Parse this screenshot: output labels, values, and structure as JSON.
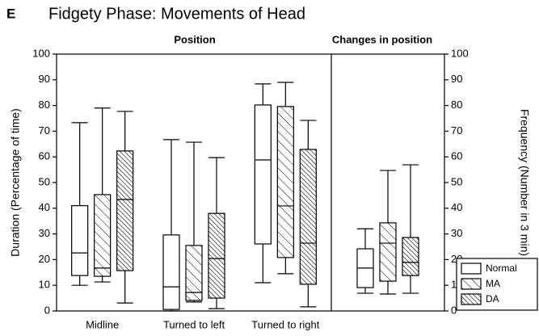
{
  "chart_data": [
    {
      "type": "box",
      "panel_label": "E",
      "title": "Fidgety Phase: Movements of Head",
      "subtitle": "Position",
      "ylabel": "Duration (Percentage of time)",
      "categories": [
        "Midline",
        "Turned to left",
        "Turned to right"
      ],
      "ylim": [
        0,
        100
      ],
      "yticks": [
        0,
        10,
        20,
        30,
        40,
        50,
        60,
        70,
        80,
        90,
        100
      ],
      "series": [
        {
          "name": "Normal",
          "hatch": "none",
          "min": [
            10,
            0,
            11
          ],
          "q1": [
            13.8,
            0.6,
            26.1
          ],
          "median": [
            22.6,
            9.4,
            58.8
          ],
          "q3": [
            41,
            29.6,
            80.2
          ],
          "max": [
            73.3,
            66.7,
            88.4
          ]
        },
        {
          "name": "MA",
          "hatch": "sparse",
          "min": [
            11.3,
            3.5,
            14.5
          ],
          "q1": [
            13.5,
            4.1,
            20.8
          ],
          "median": [
            16.7,
            7.2,
            40.9
          ],
          "q3": [
            45.3,
            25.5,
            79.6
          ],
          "max": [
            79,
            65.7,
            89
          ]
        },
        {
          "name": "DA",
          "hatch": "dense",
          "min": [
            3.1,
            0.9,
            1.6
          ],
          "q1": [
            15.7,
            5,
            10.4
          ],
          "median": [
            43.4,
            20.4,
            26.4
          ],
          "q3": [
            62.3,
            38,
            62.9
          ],
          "max": [
            77.7,
            59.7,
            74.2
          ]
        }
      ]
    },
    {
      "type": "box",
      "subtitle": "Changes in position",
      "y2label": "Frequency (Number in 3 min)",
      "categories": [
        null
      ],
      "y2lim": [
        0,
        100
      ],
      "y2ticks": [
        0,
        10,
        20,
        30,
        40,
        50,
        60,
        70,
        80,
        90,
        100
      ],
      "legend": "lower right",
      "series": [
        {
          "name": "Normal",
          "hatch": "none",
          "axis": "y2",
          "min": [
            6.9
          ],
          "q1": [
            9.1
          ],
          "median": [
            16.7
          ],
          "q3": [
            24.2
          ],
          "max": [
            32
          ]
        },
        {
          "name": "MA",
          "hatch": "sparse",
          "axis": "y2",
          "min": [
            6.6
          ],
          "q1": [
            11.6
          ],
          "median": [
            26.4
          ],
          "q3": [
            34.3
          ],
          "max": [
            54.7
          ]
        },
        {
          "name": "DA",
          "hatch": "dense",
          "axis": "y2",
          "min": [
            6.9
          ],
          "q1": [
            13.8
          ],
          "median": [
            18.9
          ],
          "q3": [
            28.6
          ],
          "max": [
            56.9
          ]
        }
      ]
    }
  ]
}
